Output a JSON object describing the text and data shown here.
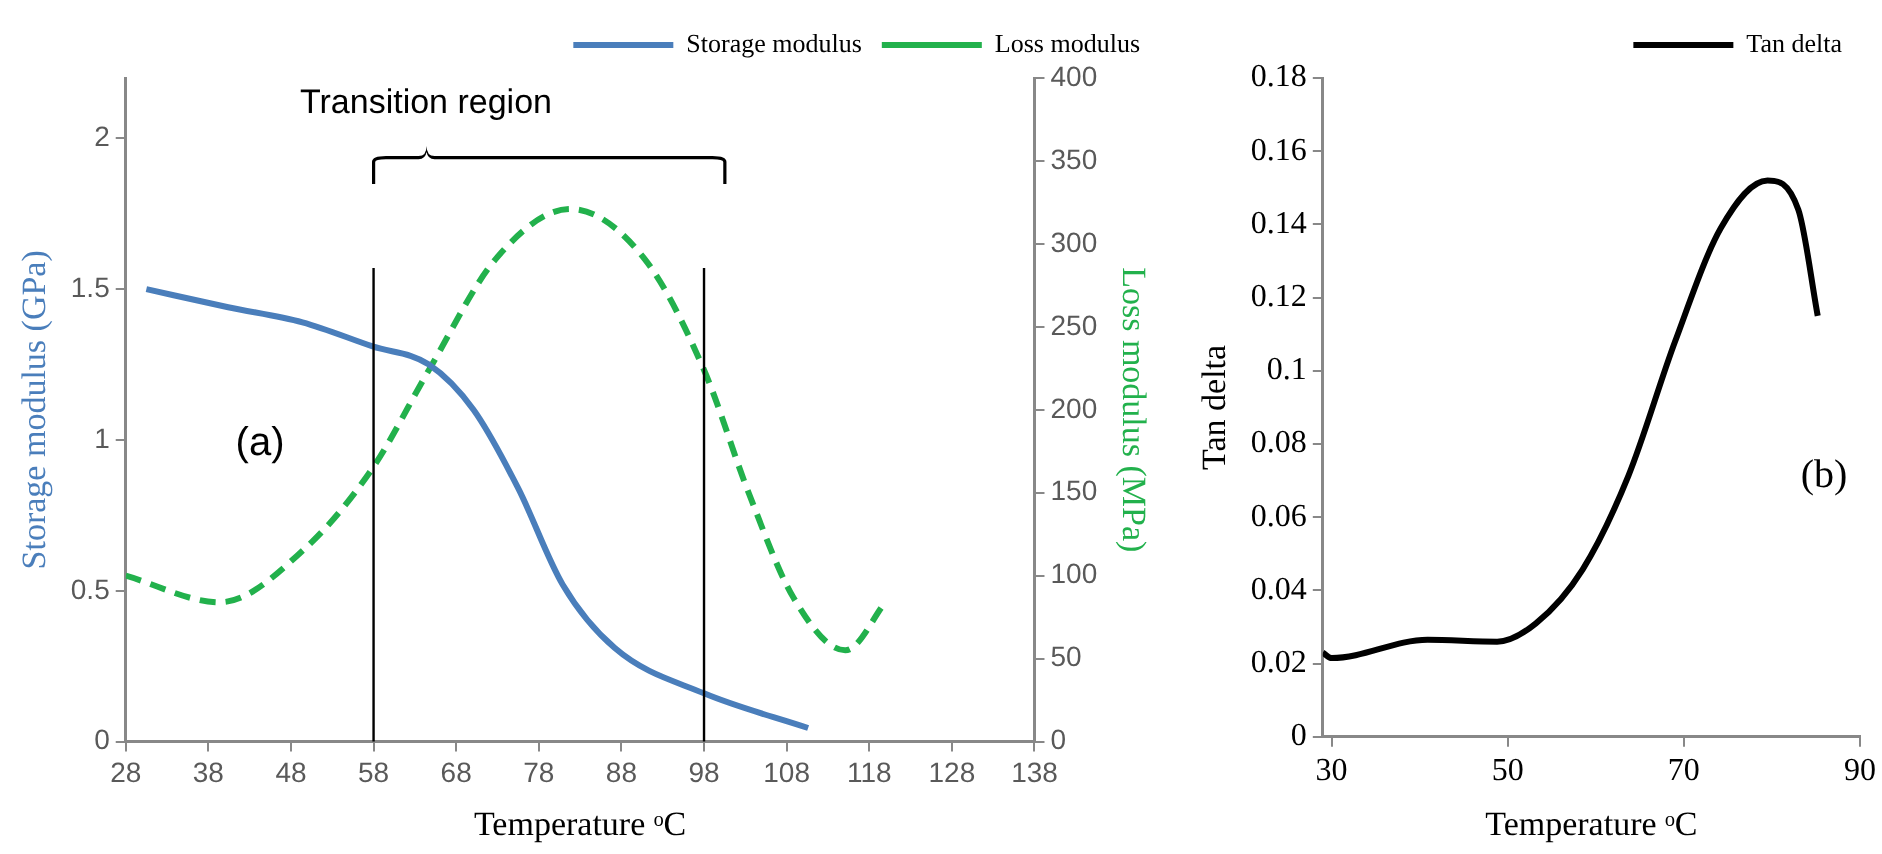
{
  "chart_data": [
    {
      "type": "line",
      "xlabel": "Temperature ᵒC",
      "ylabel": "Storage modulus (GPa)",
      "y2label": "Loss modulus (MPa)",
      "xlim": [
        28,
        138
      ],
      "xticks": [
        28,
        38,
        48,
        58,
        68,
        78,
        88,
        98,
        108,
        118,
        128,
        138
      ],
      "ylim": [
        0,
        2.2
      ],
      "yticks": [
        0,
        0.5,
        1,
        1.5,
        2
      ],
      "y2lim": [
        0,
        400
      ],
      "y2ticks": [
        0,
        50,
        100,
        150,
        200,
        250,
        300,
        350,
        400
      ],
      "legend": "top right",
      "grid": false,
      "marker": "none",
      "series": [
        {
          "name": "Storage modulus",
          "color": "#4a7ebb",
          "line_style": "solid",
          "x": [
            30.5,
            40.4,
            49.4,
            57.9,
            64.7,
            70.1,
            75.5,
            80.9,
            87.2,
            98,
            110.6
          ],
          "values": [
            1.5,
            1.44,
            1.39,
            1.31,
            1.25,
            1.1,
            0.84,
            0.52,
            0.31,
            0.16,
            0.045
          ]
        },
        {
          "name": "Loss modulus",
          "color": "#22b14c",
          "line_style": "dashed",
          "axis": "y2",
          "x": [
            28,
            39.4,
            49.4,
            57.9,
            64.7,
            72.8,
            81.8,
            90.8,
            98,
            103.4,
            108.8,
            115.1,
            120.1
          ],
          "values": [
            100,
            84,
            115,
            165,
            224,
            291,
            321,
            291,
            224,
            150,
            87,
            55,
            85
          ]
        }
      ],
      "ref_lines": [
        {
          "axis": "x",
          "value": 58,
          "color": "#000000"
        },
        {
          "axis": "x",
          "value": 98,
          "color": "#000000"
        }
      ],
      "annotations": [
        "Transition region",
        "(a)"
      ]
    },
    {
      "type": "line",
      "xlabel": "Temperature ᵒC",
      "ylabel": "Tan delta",
      "xlim": [
        29,
        90
      ],
      "xticks": [
        30,
        50,
        70,
        90
      ],
      "ylim": [
        0,
        0.18
      ],
      "yticks": [
        0,
        0.02,
        0.04,
        0.06,
        0.08,
        0.1,
        0.12,
        0.14,
        0.16,
        0.18
      ],
      "legend": "top right",
      "grid": false,
      "marker": "none",
      "series": [
        {
          "name": "Tan delta",
          "color": "#000000",
          "line_style": "solid",
          "x": [
            29,
            30,
            40.9,
            48.8,
            53.2,
            58.5,
            63.7,
            69,
            74.2,
            79.5,
            83,
            85.2
          ],
          "values": [
            0.023,
            0.0215,
            0.0265,
            0.026,
            0.031,
            0.0457,
            0.0713,
            0.108,
            0.139,
            0.152,
            0.144,
            0.115
          ]
        }
      ],
      "annotations": [
        "(b)"
      ]
    }
  ]
}
